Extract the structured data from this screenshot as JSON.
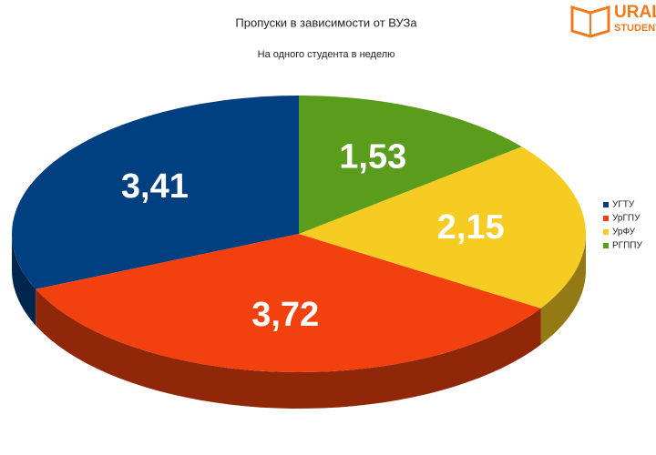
{
  "chart_data": {
    "type": "pie3d",
    "title": "Пропуски в зависимости от ВУЗа",
    "subtitle": "На одного студента в  неделю",
    "categories": [
      "УГТУ",
      "УрГПУ",
      "УрФУ",
      "РГППУ"
    ],
    "values": [
      3.41,
      3.72,
      2.15,
      1.53
    ],
    "value_labels": [
      "3,41",
      "3,72",
      "2,15",
      "1,53"
    ],
    "colors": [
      "#003f80",
      "#f2410f",
      "#f6cb22",
      "#5a9c1c"
    ],
    "legend": "right"
  },
  "logo": {
    "line1": "URAL",
    "line2": "STUDENT"
  }
}
